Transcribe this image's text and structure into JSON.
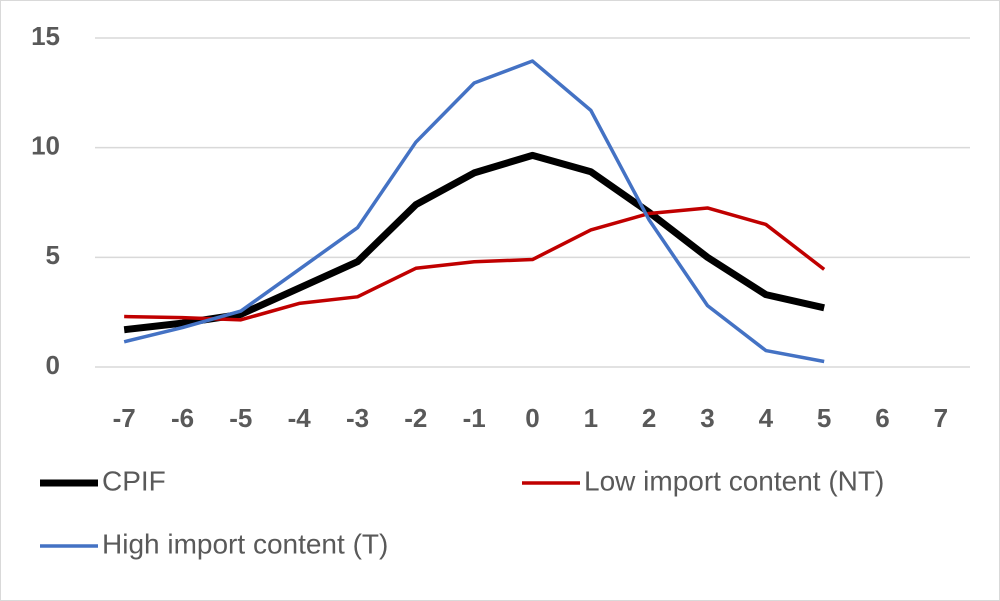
{
  "chart_data": {
    "type": "line",
    "categories": [
      "-7",
      "-6",
      "-5",
      "-4",
      "-3",
      "-2",
      "-1",
      "0",
      "1",
      "2",
      "3",
      "4",
      "5",
      "6",
      "7"
    ],
    "series": [
      {
        "name": "CPIF",
        "color": "#000000",
        "values": [
          1.7,
          2.0,
          2.4,
          3.6,
          4.8,
          7.4,
          8.85,
          9.65,
          8.9,
          7.05,
          5.0,
          3.3,
          2.7,
          null,
          null
        ]
      },
      {
        "name": "Low import content (NT)",
        "color": "#c00000",
        "values": [
          2.3,
          2.25,
          2.15,
          2.9,
          3.2,
          4.5,
          4.8,
          4.9,
          6.25,
          7.0,
          7.25,
          6.5,
          4.45,
          null,
          null
        ]
      },
      {
        "name": "High import content (T)",
        "color": "#4472c4",
        "values": [
          1.15,
          1.8,
          2.55,
          4.45,
          6.35,
          10.25,
          12.95,
          13.95,
          11.7,
          6.7,
          2.8,
          0.75,
          0.25,
          null,
          null
        ]
      }
    ],
    "ylim": [
      0,
      15
    ],
    "yticks": [
      0,
      5,
      10,
      15
    ],
    "grid": true,
    "legend": "bottom"
  }
}
